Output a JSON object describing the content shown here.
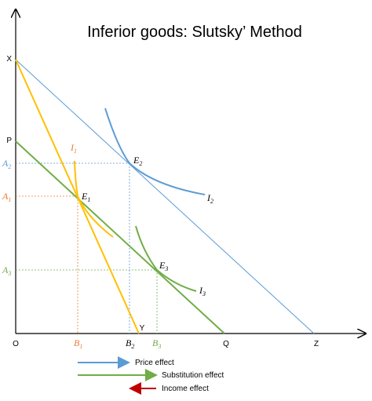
{
  "title": "Inferior goods: Slutsky’ Method",
  "axis_points": {
    "origin": "O",
    "x_top": "X",
    "p": "P",
    "y": "Y",
    "q": "Q",
    "z": "Z"
  },
  "y_ticks": [
    {
      "base": "A",
      "sub": "2",
      "color": "#5b9bd5"
    },
    {
      "base": "A",
      "sub": "1",
      "color": "#ed7d31"
    },
    {
      "base": "A",
      "sub": "3",
      "color": "#70ad47"
    }
  ],
  "x_ticks": [
    {
      "base": "B",
      "sub": "1",
      "color": "#ed7d31"
    },
    {
      "base": "B",
      "sub": "2",
      "color": "#000000"
    },
    {
      "base": "B",
      "sub": "3",
      "color": "#70ad47"
    }
  ],
  "equilibria": [
    {
      "base": "E",
      "sub": "1"
    },
    {
      "base": "E",
      "sub": "2"
    },
    {
      "base": "E",
      "sub": "3"
    }
  ],
  "indifference": [
    {
      "base": "I",
      "sub": "1",
      "color": "#ed7d31"
    },
    {
      "base": "I",
      "sub": "2",
      "color": "#000000"
    },
    {
      "base": "I",
      "sub": "3",
      "color": "#000000"
    }
  ],
  "legend": [
    {
      "label": "Price effect",
      "color": "#5b9bd5"
    },
    {
      "label": "Substitution effect",
      "color": "#70ad47"
    },
    {
      "label": "Income effect",
      "color": "#c00000"
    }
  ],
  "colors": {
    "axis": "#000000",
    "budget_xy": "#ffc000",
    "budget_xz": "#5b9bd5",
    "budget_pq": "#70ad47",
    "curve_i1": "#ffc000",
    "curve_i2": "#5b9bd5",
    "curve_i3": "#70ad47"
  }
}
